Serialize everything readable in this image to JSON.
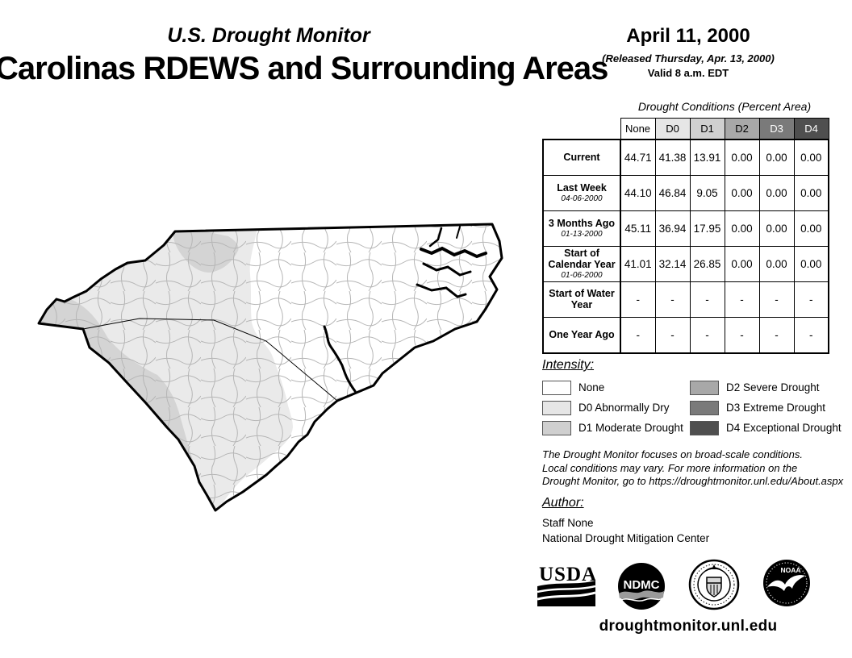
{
  "header": {
    "program": "U.S. Drought Monitor",
    "title": "Carolinas RDEWS and Surrounding Areas",
    "date": "April 11, 2000",
    "released": "(Released Thursday, Apr. 13, 2000)",
    "valid": "Valid 8 a.m. EDT"
  },
  "table": {
    "title": "Drought Conditions (Percent Area)",
    "columns": [
      {
        "label": "None",
        "bg": "#ffffff",
        "fg": "#000000"
      },
      {
        "label": "D0",
        "bg": "#e6e6e6",
        "fg": "#000000"
      },
      {
        "label": "D1",
        "bg": "#d0d0d0",
        "fg": "#000000"
      },
      {
        "label": "D2",
        "bg": "#a8a8a8",
        "fg": "#000000"
      },
      {
        "label": "D3",
        "bg": "#7a7a7a",
        "fg": "#ffffff"
      },
      {
        "label": "D4",
        "bg": "#4f4f4f",
        "fg": "#ffffff"
      }
    ],
    "rows": [
      {
        "label": "Current",
        "sublabel": "",
        "values": [
          "44.71",
          "41.38",
          "13.91",
          "0.00",
          "0.00",
          "0.00"
        ]
      },
      {
        "label": "Last Week",
        "sublabel": "04-06-2000",
        "values": [
          "44.10",
          "46.84",
          "9.05",
          "0.00",
          "0.00",
          "0.00"
        ]
      },
      {
        "label": "3 Months Ago",
        "sublabel": "01-13-2000",
        "values": [
          "45.11",
          "36.94",
          "17.95",
          "0.00",
          "0.00",
          "0.00"
        ]
      },
      {
        "label": "Start of Calendar Year",
        "sublabel": "01-06-2000",
        "values": [
          "41.01",
          "32.14",
          "26.85",
          "0.00",
          "0.00",
          "0.00"
        ]
      },
      {
        "label": "Start of Water Year",
        "sublabel": "",
        "values": [
          "-",
          "-",
          "-",
          "-",
          "-",
          "-"
        ]
      },
      {
        "label": "One Year Ago",
        "sublabel": "",
        "values": [
          "-",
          "-",
          "-",
          "-",
          "-",
          "-"
        ]
      }
    ]
  },
  "legend": {
    "title": "Intensity:",
    "items": [
      {
        "label": "None",
        "color": "#ffffff"
      },
      {
        "label": "D0 Abnormally Dry",
        "color": "#e6e6e6"
      },
      {
        "label": "D1 Moderate Drought",
        "color": "#cfcfcf"
      },
      {
        "label": "D2 Severe Drought",
        "color": "#a8a8a8"
      },
      {
        "label": "D3 Extreme Drought",
        "color": "#7a7a7a"
      },
      {
        "label": "D4 Exceptional Drought",
        "color": "#4f4f4f"
      }
    ]
  },
  "disclaimer": {
    "lines": [
      "The Drought Monitor focuses on broad-scale conditions.",
      "Local conditions may vary. For more information on the",
      "Drought Monitor, go to https://droughtmonitor.unl.edu/About.aspx"
    ]
  },
  "author": {
    "title": "Author:",
    "name": "Staff None",
    "org": "National Drought Mitigation Center"
  },
  "logos": {
    "usda": "USDA",
    "ndmc": "NDMC",
    "doc": "Department of Commerce seal",
    "noaa": "NOAA"
  },
  "footer": {
    "url": "droughtmonitor.unl.edu"
  },
  "map": {
    "region": "North Carolina and South Carolina with county boundaries",
    "shaded_levels_present": [
      "None",
      "D0",
      "D1"
    ]
  },
  "colors": {
    "none": "#ffffff",
    "d0": "#eaeaea",
    "d1": "#d4d4d4",
    "d2": "#a8a8a8",
    "d3": "#7a7a7a",
    "d4": "#4f4f4f",
    "county_line": "#b5b5b5",
    "state_border": "#000000"
  }
}
